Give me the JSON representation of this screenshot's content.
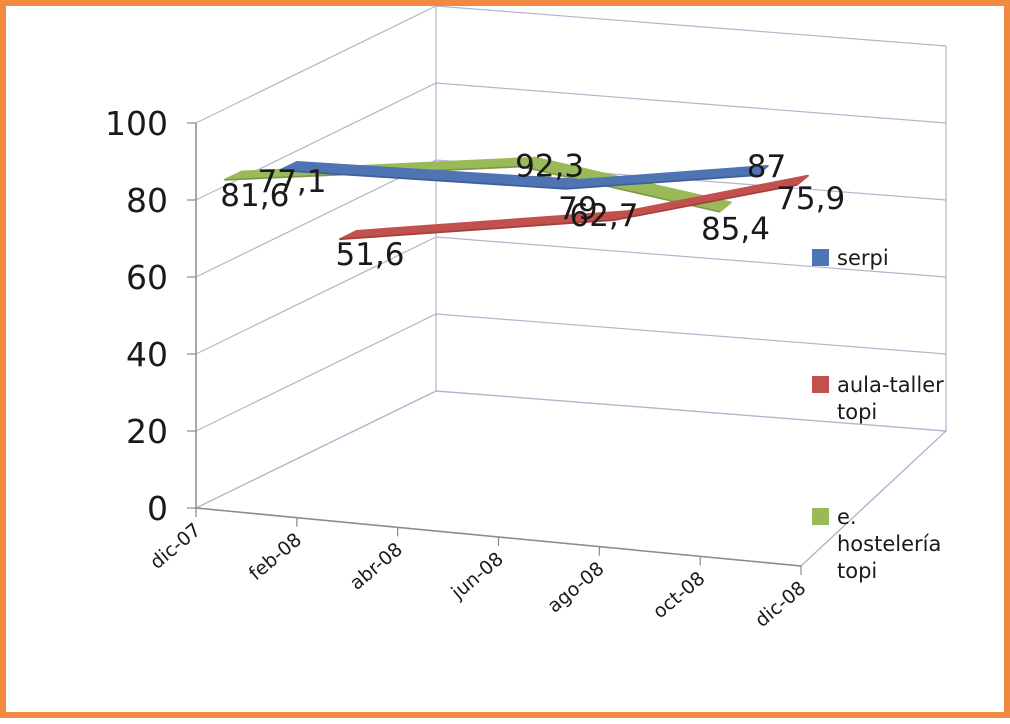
{
  "chart_data": {
    "type": "line",
    "style": "3d",
    "categories": [
      "dic-07",
      "feb-08",
      "abr-08",
      "jun-08",
      "ago-08",
      "oct-08",
      "dic-08"
    ],
    "yticks": [
      0,
      20,
      40,
      60,
      80,
      100
    ],
    "ylim": [
      0,
      100
    ],
    "grid": true,
    "legend_position": "right",
    "series": [
      {
        "name": "serpi",
        "color": "#4f74b4",
        "points": [
          {
            "x": "dic-07",
            "y": 77.1,
            "label": "77,1"
          },
          {
            "x": "jun-08",
            "y": 79,
            "label": "79"
          },
          {
            "x": "oct-08",
            "y": 87,
            "label": "87"
          }
        ]
      },
      {
        "name": "aula-taller topi",
        "color": "#c2504d",
        "points": [
          {
            "x": "dic-07",
            "y": 51.6,
            "label": "51,6"
          },
          {
            "x": "jun-08",
            "y": 62.7,
            "label": "62,7"
          },
          {
            "x": "oct-08",
            "y": 75.9,
            "label": "75,9"
          }
        ]
      },
      {
        "name": "e. hostelería topi",
        "color": "#9aba59",
        "points": [
          {
            "x": "dic-07",
            "y": 81.6,
            "label": "81,6"
          },
          {
            "x": "jun-08",
            "y": 92.3,
            "label": "92,3"
          },
          {
            "x": "oct-08",
            "y": 85.4,
            "label": "85,4"
          }
        ]
      }
    ]
  }
}
